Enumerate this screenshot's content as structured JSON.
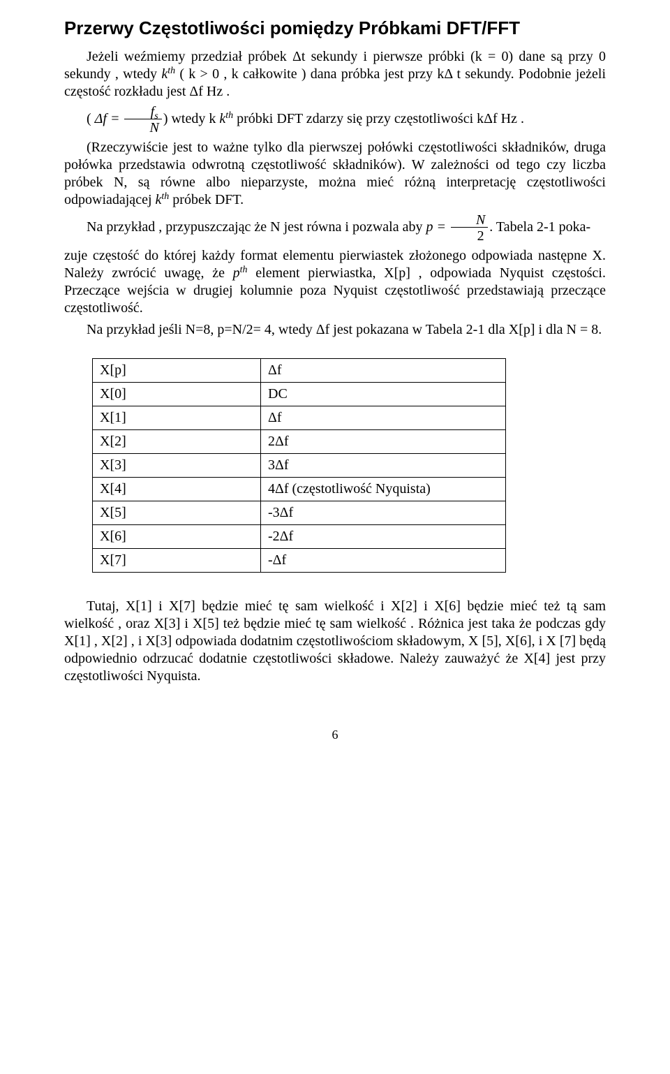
{
  "title": "Przerwy Częstotliwości pomiędzy  Próbkami DFT/FFT",
  "para1_a": "Jeżeli weźmiemy przedział próbek Δt sekundy  i pierwsze próbki (k = 0) dane są przy 0 sekundy , wtedy ",
  "para1_k": "k",
  "para1_th": "th",
  "para1_b": " ( k > 0 , k całkowite ) dana próbka jest przy kΔ t sekundy. Podobnie jeżeli częstość rozkładu jest  Δf Hz .",
  "para2_open": "( ",
  "para2_df_eq": "Δf = ",
  "frac_num_f": "f",
  "frac_num_s": "s",
  "frac_den_N": "N",
  "para2_mid1": ") wtedy k ",
  "para2_k": "k",
  "para2_th": "th",
  "para2_mid2": " próbki DFT zdarzy się przy częstotliwości kΔf  Hz .",
  "para3_a": "(Rzeczywiście jest to ważne tylko dla pierwszej połówki częstotliwości składników, druga połówka przedstawia odwrotną częstotliwość składników). W zależności od tego czy liczba  próbek  N, są równe albo nieparzyste, można mieć różną interpretację częstotliwości odpowiadającej ",
  "para3_k": "k",
  "para3_th": "th",
  "para3_b": " próbek DFT.",
  "para4_a": "Na przykład , przypuszczając że N jest równa i pozwala aby ",
  "para4_p_eq": "p = ",
  "frac2_num_N": "N",
  "frac2_den_2": "2",
  "para4_b": ". Tabela 2-1 poka-",
  "para5_a": "zuje częstość do której każdy format elementu pierwiastek złożonego odpowiada następne X. Należy zwrócić uwagę, że ",
  "para5_p": "p",
  "para5_th": "th",
  "para5_b": " element pierwiastka, X[p] , odpowiada Nyquist częstości. Przeczące wejścia w drugiej kolumnie poza Nyquist częstotliwość przedstawiają przeczące częstotliwość.",
  "para6": "Na przykład jeśli N=8, p=N/2= 4, wtedy Δf jest pokazana w   Tabela 2-1 dla X[p] i dla N = 8.",
  "tbl": {
    "rows": [
      [
        "X[p]",
        "Δf"
      ],
      [
        "X[0]",
        "DC"
      ],
      [
        "X[1]",
        "Δf"
      ],
      [
        "X[2]",
        "2Δf"
      ],
      [
        "X[3]",
        "3Δf"
      ],
      [
        "X[4]",
        "4Δf (częstotliwość Nyquista)"
      ],
      [
        "X[5]",
        "-3Δf"
      ],
      [
        "X[6]",
        "-2Δf"
      ],
      [
        "X[7]",
        "-Δf"
      ]
    ]
  },
  "para7": "Tutaj, X[1] i X[7] będzie mieć tę sam wielkość i X[2] i X[6] będzie mieć też tą sam wielkość , oraz X[3] i X[5] też będzie mieć tę sam wielkość . Różnica jest taka że podczas gdy X[1] , X[2] , i X[3] odpowiada dodatnim częstotliwościom składowym, X [5], X[6], i X [7] będą odpowiednio odrzucać dodatnie częstotliwości składowe. Należy zauważyć że X[4] jest przy częstotliwości Nyquista.",
  "pagenum": "6"
}
